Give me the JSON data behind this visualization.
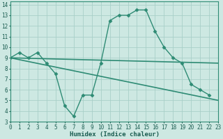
{
  "series": [
    {
      "x": [
        0,
        1,
        2,
        3,
        4,
        5,
        6,
        7,
        8,
        9,
        10,
        11,
        12,
        13,
        14,
        15,
        16,
        17,
        18,
        19,
        20,
        21,
        22
      ],
      "y": [
        9.0,
        9.5,
        9.0,
        9.5,
        8.5,
        7.5,
        4.5,
        3.5,
        5.5,
        5.5,
        8.5,
        12.5,
        13.0,
        13.0,
        13.5,
        13.5,
        11.5,
        10.0,
        9.0,
        8.5,
        6.5,
        6.0,
        5.5
      ],
      "color": "#2e8b74",
      "marker": "D",
      "markersize": 2.5,
      "linewidth": 1.0
    },
    {
      "x": [
        0,
        23
      ],
      "y": [
        9.0,
        5.0
      ],
      "color": "#2e8b74",
      "marker": null,
      "markersize": 0,
      "linewidth": 1.2
    },
    {
      "x": [
        0,
        23
      ],
      "y": [
        9.0,
        8.5
      ],
      "color": "#2e8b74",
      "marker": null,
      "markersize": 0,
      "linewidth": 1.2
    }
  ],
  "xlim": [
    0,
    23
  ],
  "ylim": [
    3,
    14.3
  ],
  "yticks": [
    3,
    4,
    5,
    6,
    7,
    8,
    9,
    10,
    11,
    12,
    13,
    14
  ],
  "xticks": [
    0,
    1,
    2,
    3,
    4,
    5,
    6,
    7,
    8,
    9,
    10,
    11,
    12,
    13,
    14,
    15,
    16,
    17,
    18,
    19,
    20,
    21,
    22,
    23
  ],
  "xlabel": "Humidex (Indice chaleur)",
  "background_color": "#cde8e2",
  "grid_color": "#a8cfc8",
  "tick_color": "#1a5c50",
  "tick_fontsize": 5.5,
  "xlabel_fontsize": 6.5
}
